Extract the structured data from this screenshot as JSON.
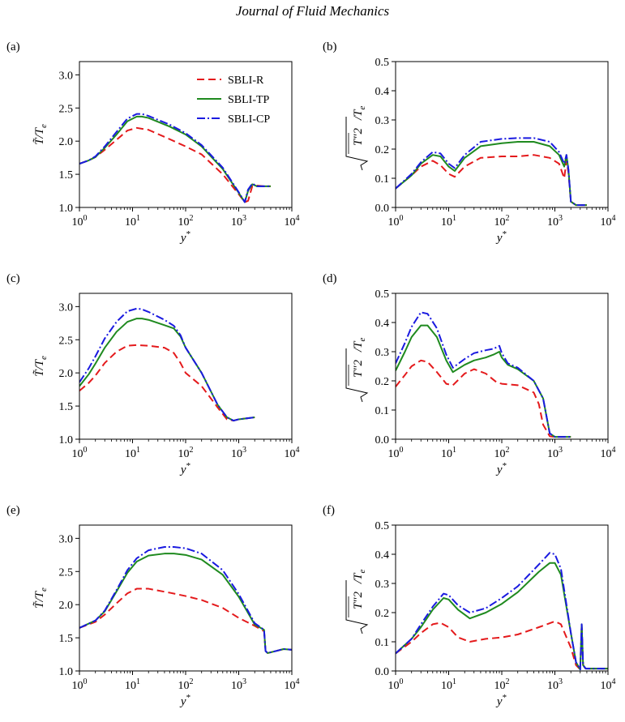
{
  "page": {
    "journal_title": "Journal of Fluid Mechanics"
  },
  "series_styles": {
    "SBLI-R": {
      "color": "#e41a1c",
      "dash": "9,5"
    },
    "SBLI-TP": {
      "color": "#1f8a1f",
      "dash": ""
    },
    "SBLI-CP": {
      "color": "#1a1ae0",
      "dash": "10,3,2,3"
    }
  },
  "chart_data": [
    {
      "panel": "(a)",
      "type": "line",
      "xscale": "log",
      "xlim": [
        1,
        10000
      ],
      "ylim": [
        1.0,
        3.2
      ],
      "xticks": [
        1,
        10,
        100,
        1000,
        10000
      ],
      "xticklabels": [
        "0",
        "1",
        "2",
        "3",
        "4"
      ],
      "yticks": [
        1.0,
        1.5,
        2.0,
        2.5,
        3.0
      ],
      "yticklabels": [
        "1.0",
        "1.5",
        "2.0",
        "2.5",
        "3.0"
      ],
      "xlabel": "y",
      "xlabel_sup": "*",
      "ylabel": "T̃/T",
      "ylabel_sub": "e",
      "legend": {
        "position": "top-right",
        "entries": [
          "SBLI-R",
          "SBLI-TP",
          "SBLI-CP"
        ]
      },
      "series": [
        {
          "name": "SBLI-R",
          "x": [
            1,
            1.5,
            2,
            3,
            5,
            8,
            12,
            20,
            50,
            100,
            200,
            500,
            1000,
            1300,
            1500,
            1800,
            2200,
            3000,
            4000
          ],
          "y": [
            1.66,
            1.71,
            1.76,
            1.87,
            2.02,
            2.16,
            2.2,
            2.17,
            2.03,
            1.92,
            1.8,
            1.5,
            1.2,
            1.08,
            1.1,
            1.32,
            1.33,
            1.32,
            1.32
          ]
        },
        {
          "name": "SBLI-TP",
          "x": [
            1,
            1.5,
            2,
            3,
            5,
            8,
            12,
            15,
            20,
            50,
            100,
            200,
            500,
            1000,
            1300,
            1500,
            1800,
            2200,
            3000,
            4000
          ],
          "y": [
            1.66,
            1.71,
            1.76,
            1.9,
            2.1,
            2.3,
            2.37,
            2.37,
            2.35,
            2.22,
            2.1,
            1.92,
            1.58,
            1.22,
            1.08,
            1.25,
            1.35,
            1.32,
            1.32,
            1.32
          ]
        },
        {
          "name": "SBLI-CP",
          "x": [
            1,
            1.5,
            2,
            3,
            5,
            8,
            12,
            15,
            20,
            50,
            100,
            200,
            500,
            1000,
            1300,
            1500,
            1800,
            2200,
            3000,
            4000
          ],
          "y": [
            1.66,
            1.71,
            1.77,
            1.92,
            2.14,
            2.34,
            2.41,
            2.41,
            2.38,
            2.25,
            2.12,
            1.94,
            1.6,
            1.23,
            1.08,
            1.27,
            1.36,
            1.32,
            1.32,
            1.32
          ]
        }
      ]
    },
    {
      "panel": "(b)",
      "type": "line",
      "xscale": "log",
      "xlim": [
        1,
        10000
      ],
      "ylim": [
        0.0,
        0.5
      ],
      "xticks": [
        1,
        10,
        100,
        1000,
        10000
      ],
      "xticklabels": [
        "0",
        "1",
        "2",
        "3",
        "4"
      ],
      "yticks": [
        0.0,
        0.1,
        0.2,
        0.3,
        0.4,
        0.5
      ],
      "yticklabels": [
        "0.0",
        "0.1",
        "0.2",
        "0.3",
        "0.4",
        "0.5"
      ],
      "xlabel": "y",
      "xlabel_sup": "*",
      "ylabel": "T″2",
      "ylabel_sub": "e",
      "series": [
        {
          "name": "SBLI-R",
          "x": [
            1,
            2,
            3,
            5,
            7,
            10,
            13,
            20,
            40,
            100,
            200,
            400,
            800,
            1200,
            1500,
            1650,
            1800,
            2000,
            2500,
            4000
          ],
          "y": [
            0.065,
            0.11,
            0.14,
            0.16,
            0.145,
            0.115,
            0.105,
            0.14,
            0.17,
            0.175,
            0.175,
            0.18,
            0.17,
            0.15,
            0.1,
            0.16,
            0.12,
            0.02,
            0.008,
            0.008
          ]
        },
        {
          "name": "SBLI-TP",
          "x": [
            1,
            2,
            3,
            5,
            7,
            10,
            13,
            20,
            40,
            100,
            200,
            400,
            800,
            1200,
            1500,
            1650,
            1800,
            2000,
            2500,
            4000
          ],
          "y": [
            0.065,
            0.11,
            0.15,
            0.18,
            0.175,
            0.14,
            0.125,
            0.17,
            0.21,
            0.22,
            0.225,
            0.225,
            0.21,
            0.18,
            0.14,
            0.18,
            0.13,
            0.02,
            0.008,
            0.008
          ]
        },
        {
          "name": "SBLI-CP",
          "x": [
            1,
            2,
            3,
            5,
            7,
            10,
            13,
            20,
            40,
            100,
            200,
            400,
            800,
            1200,
            1500,
            1650,
            1800,
            2000,
            2500,
            4000
          ],
          "y": [
            0.065,
            0.115,
            0.155,
            0.19,
            0.185,
            0.15,
            0.135,
            0.18,
            0.225,
            0.235,
            0.238,
            0.238,
            0.225,
            0.19,
            0.15,
            0.18,
            0.13,
            0.02,
            0.008,
            0.008
          ]
        }
      ]
    },
    {
      "panel": "(c)",
      "type": "line",
      "xscale": "log",
      "xlim": [
        1,
        10000
      ],
      "ylim": [
        1.0,
        3.2
      ],
      "xticks": [
        1,
        10,
        100,
        1000,
        10000
      ],
      "xticklabels": [
        "0",
        "1",
        "2",
        "3",
        "4"
      ],
      "yticks": [
        1.0,
        1.5,
        2.0,
        2.5,
        3.0
      ],
      "yticklabels": [
        "1.0",
        "1.5",
        "2.0",
        "2.5",
        "3.0"
      ],
      "xlabel": "y",
      "xlabel_sup": "*",
      "ylabel": "T̃/T",
      "ylabel_sub": "e",
      "series": [
        {
          "name": "SBLI-R",
          "x": [
            1,
            1.5,
            2,
            3,
            5,
            8,
            12,
            20,
            40,
            60,
            80,
            100,
            200,
            400,
            600,
            800,
            1000,
            2000
          ],
          "y": [
            1.73,
            1.85,
            1.96,
            2.15,
            2.32,
            2.41,
            2.42,
            2.41,
            2.38,
            2.3,
            2.15,
            2.0,
            1.8,
            1.48,
            1.3,
            1.28,
            1.3,
            1.33
          ]
        },
        {
          "name": "SBLI-TP",
          "x": [
            1,
            1.5,
            2,
            3,
            5,
            8,
            12,
            15,
            20,
            40,
            60,
            80,
            100,
            200,
            400,
            600,
            800,
            1000,
            2000
          ],
          "y": [
            1.8,
            1.98,
            2.14,
            2.38,
            2.62,
            2.77,
            2.82,
            2.82,
            2.8,
            2.72,
            2.67,
            2.55,
            2.38,
            2.0,
            1.52,
            1.33,
            1.28,
            1.3,
            1.33
          ]
        },
        {
          "name": "SBLI-CP",
          "x": [
            1,
            1.5,
            2,
            3,
            5,
            8,
            12,
            15,
            20,
            40,
            60,
            80,
            100,
            200,
            400,
            600,
            800,
            1000,
            2000
          ],
          "y": [
            1.86,
            2.07,
            2.25,
            2.52,
            2.77,
            2.93,
            2.97,
            2.96,
            2.92,
            2.8,
            2.71,
            2.57,
            2.38,
            2.0,
            1.52,
            1.33,
            1.28,
            1.3,
            1.33
          ]
        }
      ]
    },
    {
      "panel": "(d)",
      "type": "line",
      "xscale": "log",
      "xlim": [
        1,
        10000
      ],
      "ylim": [
        0.0,
        0.5
      ],
      "xticks": [
        1,
        10,
        100,
        1000,
        10000
      ],
      "xticklabels": [
        "0",
        "1",
        "2",
        "3",
        "4"
      ],
      "yticks": [
        0.0,
        0.1,
        0.2,
        0.3,
        0.4,
        0.5
      ],
      "yticklabels": [
        "0.0",
        "0.1",
        "0.2",
        "0.3",
        "0.4",
        "0.5"
      ],
      "xlabel": "y",
      "xlabel_sup": "*",
      "ylabel": "T″2",
      "ylabel_sub": "e",
      "series": [
        {
          "name": "SBLI-R",
          "x": [
            1,
            1.5,
            2,
            3,
            4,
            6,
            9,
            12,
            20,
            30,
            50,
            80,
            100,
            200,
            400,
            500,
            600,
            800,
            1000,
            2000
          ],
          "y": [
            0.18,
            0.22,
            0.25,
            0.27,
            0.265,
            0.23,
            0.19,
            0.185,
            0.225,
            0.24,
            0.225,
            0.195,
            0.19,
            0.185,
            0.16,
            0.12,
            0.05,
            0.01,
            0.008,
            0.008
          ]
        },
        {
          "name": "SBLI-TP",
          "x": [
            1,
            1.5,
            2,
            3,
            4,
            6,
            9,
            12,
            20,
            30,
            50,
            70,
            90,
            100,
            130,
            200,
            400,
            600,
            800,
            1000,
            2000
          ],
          "y": [
            0.235,
            0.3,
            0.35,
            0.39,
            0.39,
            0.35,
            0.27,
            0.23,
            0.255,
            0.27,
            0.28,
            0.29,
            0.3,
            0.28,
            0.255,
            0.24,
            0.2,
            0.14,
            0.02,
            0.008,
            0.008
          ]
        },
        {
          "name": "SBLI-CP",
          "x": [
            1,
            1.5,
            2,
            3,
            4,
            6,
            9,
            12,
            20,
            30,
            50,
            70,
            90,
            100,
            130,
            200,
            400,
            600,
            800,
            1000,
            2000
          ],
          "y": [
            0.26,
            0.33,
            0.385,
            0.435,
            0.43,
            0.38,
            0.29,
            0.245,
            0.275,
            0.295,
            0.305,
            0.31,
            0.32,
            0.295,
            0.26,
            0.245,
            0.2,
            0.14,
            0.02,
            0.008,
            0.008
          ]
        }
      ]
    },
    {
      "panel": "(e)",
      "type": "line",
      "xscale": "log",
      "xlim": [
        1,
        10000
      ],
      "ylim": [
        1.0,
        3.2
      ],
      "xticks": [
        1,
        10,
        100,
        1000,
        10000
      ],
      "xticklabels": [
        "0",
        "1",
        "2",
        "3",
        "4"
      ],
      "yticks": [
        1.0,
        1.5,
        2.0,
        2.5,
        3.0
      ],
      "yticklabels": [
        "1.0",
        "1.5",
        "2.0",
        "2.5",
        "3.0"
      ],
      "xlabel": "y",
      "xlabel_sup": "*",
      "ylabel": "T̃/T",
      "ylabel_sub": "e",
      "series": [
        {
          "name": "SBLI-R",
          "x": [
            1,
            2,
            3,
            5,
            8,
            12,
            20,
            50,
            100,
            200,
            500,
            1000,
            2000,
            3000,
            3200,
            3500,
            5000,
            7000,
            10000
          ],
          "y": [
            1.65,
            1.74,
            1.85,
            2.02,
            2.17,
            2.24,
            2.24,
            2.18,
            2.13,
            2.07,
            1.95,
            1.8,
            1.68,
            1.6,
            1.3,
            1.27,
            1.3,
            1.33,
            1.32
          ]
        },
        {
          "name": "SBLI-TP",
          "x": [
            1,
            2,
            3,
            5,
            8,
            12,
            20,
            40,
            60,
            100,
            200,
            500,
            1000,
            2000,
            3000,
            3200,
            3500,
            5000,
            7000,
            10000
          ],
          "y": [
            1.65,
            1.76,
            1.9,
            2.2,
            2.48,
            2.65,
            2.74,
            2.77,
            2.77,
            2.75,
            2.68,
            2.45,
            2.12,
            1.7,
            1.62,
            1.3,
            1.27,
            1.3,
            1.33,
            1.32
          ]
        },
        {
          "name": "SBLI-CP",
          "x": [
            1,
            2,
            3,
            5,
            8,
            12,
            20,
            40,
            60,
            100,
            200,
            500,
            1000,
            2000,
            3000,
            3200,
            3500,
            5000,
            7000,
            10000
          ],
          "y": [
            1.65,
            1.76,
            1.91,
            2.22,
            2.52,
            2.7,
            2.82,
            2.87,
            2.87,
            2.85,
            2.77,
            2.52,
            2.16,
            1.72,
            1.62,
            1.3,
            1.27,
            1.3,
            1.33,
            1.32
          ]
        }
      ]
    },
    {
      "panel": "(f)",
      "type": "line",
      "xscale": "log",
      "xlim": [
        1,
        10000
      ],
      "ylim": [
        0.0,
        0.5
      ],
      "xticks": [
        1,
        10,
        100,
        1000,
        10000
      ],
      "xticklabels": [
        "0",
        "1",
        "2",
        "3",
        "4"
      ],
      "yticks": [
        0.0,
        0.1,
        0.2,
        0.3,
        0.4,
        0.5
      ],
      "yticklabels": [
        "0.0",
        "0.1",
        "0.2",
        "0.3",
        "0.4",
        "0.5"
      ],
      "xlabel": "y",
      "xlabel_sup": "*",
      "ylabel": "T″2",
      "ylabel_sub": "e",
      "series": [
        {
          "name": "SBLI-R",
          "x": [
            1,
            2,
            3,
            5,
            7,
            10,
            15,
            25,
            50,
            100,
            200,
            500,
            1000,
            1300,
            2000,
            2500,
            3000,
            3200,
            3400,
            3800,
            5000,
            10000
          ],
          "y": [
            0.06,
            0.1,
            0.13,
            0.16,
            0.165,
            0.15,
            0.115,
            0.1,
            0.11,
            0.115,
            0.125,
            0.15,
            0.17,
            0.16,
            0.08,
            0.02,
            0.005,
            0.16,
            0.02,
            0.008,
            0.008,
            0.008
          ]
        },
        {
          "name": "SBLI-TP",
          "x": [
            1,
            2,
            3,
            5,
            8,
            10,
            15,
            25,
            50,
            100,
            200,
            500,
            800,
            1000,
            1300,
            2000,
            2500,
            3000,
            3200,
            3400,
            3800,
            5000,
            10000
          ],
          "y": [
            0.06,
            0.11,
            0.15,
            0.21,
            0.25,
            0.245,
            0.21,
            0.18,
            0.2,
            0.23,
            0.27,
            0.34,
            0.37,
            0.37,
            0.33,
            0.13,
            0.03,
            0.005,
            0.16,
            0.02,
            0.008,
            0.008,
            0.008
          ]
        },
        {
          "name": "SBLI-CP",
          "x": [
            1,
            2,
            3,
            5,
            8,
            10,
            15,
            25,
            50,
            100,
            200,
            500,
            800,
            1000,
            1300,
            2000,
            2500,
            3000,
            3200,
            3400,
            3800,
            5000,
            10000
          ],
          "y": [
            0.06,
            0.11,
            0.16,
            0.22,
            0.265,
            0.26,
            0.225,
            0.2,
            0.215,
            0.25,
            0.29,
            0.365,
            0.405,
            0.4,
            0.35,
            0.13,
            0.03,
            0.005,
            0.16,
            0.02,
            0.008,
            0.008,
            0.008
          ]
        }
      ]
    }
  ]
}
